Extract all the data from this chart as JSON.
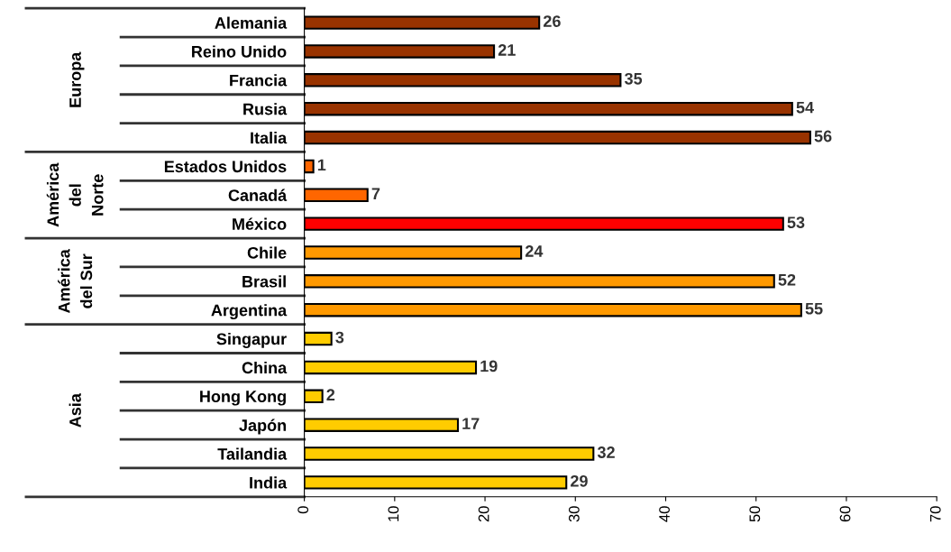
{
  "chart_data": {
    "type": "bar",
    "orientation": "horizontal",
    "categories": [
      "Alemania",
      "Reino Unido",
      "Francia",
      "Rusia",
      "Italia",
      "Estados Unidos",
      "Canadá",
      "México",
      "Chile",
      "Brasil",
      "Argentina",
      "Singapur",
      "China",
      "Hong Kong",
      "Japón",
      "Tailandia",
      "India"
    ],
    "values": [
      26,
      21,
      35,
      54,
      56,
      1,
      7,
      53,
      24,
      52,
      55,
      3,
      19,
      2,
      17,
      32,
      29
    ],
    "colors": [
      "#993300",
      "#993300",
      "#993300",
      "#993300",
      "#993300",
      "#ff6600",
      "#ff6600",
      "#ff0000",
      "#ff9900",
      "#ff9900",
      "#ff9900",
      "#ffcc00",
      "#ffcc00",
      "#ffcc00",
      "#ffcc00",
      "#ffcc00",
      "#ffcc00"
    ],
    "xlim": [
      0,
      70
    ],
    "xticks": [
      0,
      10,
      20,
      30,
      40,
      50,
      60,
      70
    ],
    "data_labels": true,
    "grid": false,
    "legend": false,
    "annotations": [
      "Europa",
      "América\ndel\nNorte",
      "América\ndel Sur",
      "Asia"
    ]
  }
}
